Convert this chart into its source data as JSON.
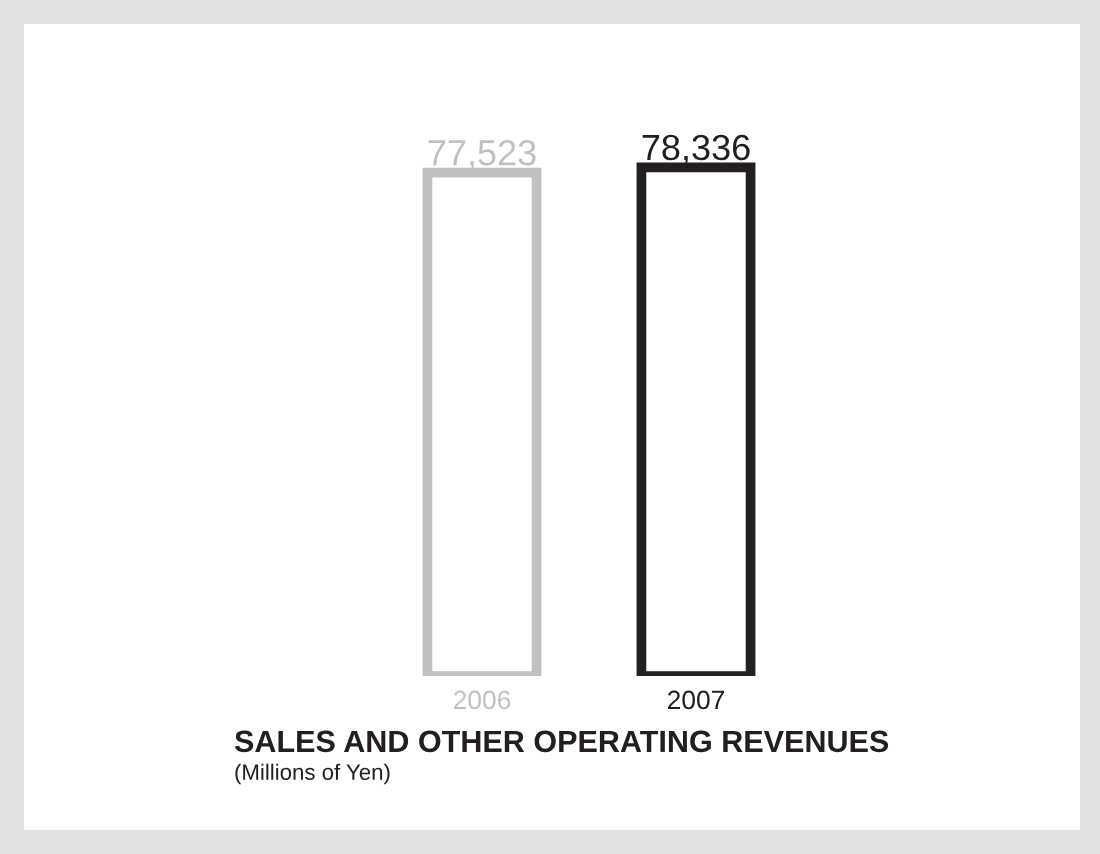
{
  "chart_data": {
    "type": "bar",
    "title": "SALES AND OTHER OPERATING REVENUES",
    "subtitle": "(Millions of Yen)",
    "categories": [
      "2006",
      "2007"
    ],
    "values": [
      77523,
      78336
    ],
    "colors": [
      "#c0c0c0",
      "#231f20"
    ],
    "value_labels": [
      "77,523",
      "78,336"
    ]
  }
}
